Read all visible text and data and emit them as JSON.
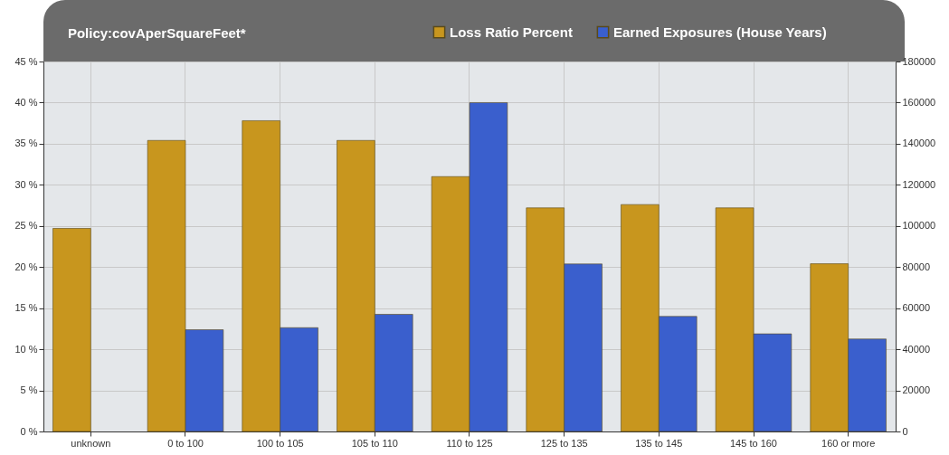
{
  "chart_data": {
    "type": "bar",
    "title": "Policy:covAperSquareFeet*",
    "categories": [
      "unknown",
      "0 to 100",
      "100 to 105",
      "105 to 110",
      "110 to 125",
      "125 to 135",
      "135 to 145",
      "145 to 160",
      "160 or more"
    ],
    "series": [
      {
        "name": "Loss Ratio Percent",
        "color": "#c8961e",
        "values": [
          24.7,
          35.4,
          37.8,
          35.4,
          31.0,
          27.2,
          27.6,
          27.2,
          20.4
        ]
      },
      {
        "name": "Earned Exposures (House Years)",
        "color": "#3a5fcd",
        "axis": "y2",
        "values": [
          null,
          49500,
          50500,
          57000,
          160000,
          81500,
          56000,
          47500,
          45000
        ]
      }
    ],
    "ylim": [
      0,
      45
    ],
    "yticks": [
      {
        "value": 0,
        "label": "0 %"
      },
      {
        "value": 5,
        "label": "5 %"
      },
      {
        "value": 10,
        "label": "10 %"
      },
      {
        "value": 15,
        "label": "15 %"
      },
      {
        "value": 20,
        "label": "20 %"
      },
      {
        "value": 25,
        "label": "25 %"
      },
      {
        "value": 30,
        "label": "30 %"
      },
      {
        "value": 35,
        "label": "35 %"
      },
      {
        "value": 40,
        "label": "40 %"
      },
      {
        "value": 45,
        "label": "45 %"
      }
    ],
    "y2lim": [
      0,
      180000
    ],
    "y2ticks": [
      0,
      20000,
      40000,
      60000,
      80000,
      100000,
      120000,
      140000,
      160000,
      180000
    ],
    "grid": true,
    "legend": "top right"
  }
}
